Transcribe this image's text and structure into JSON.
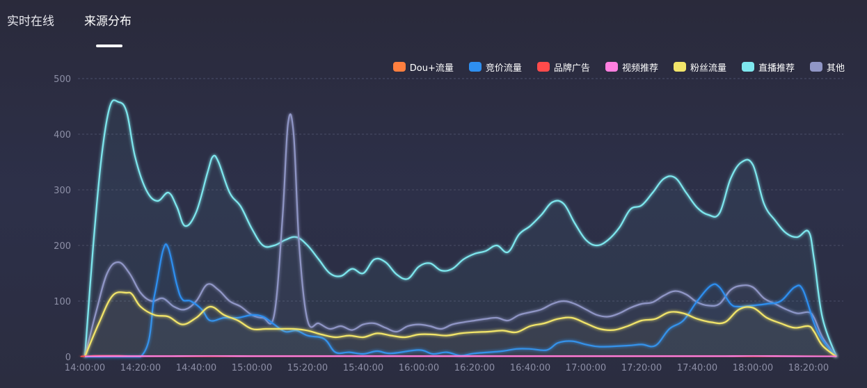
{
  "tabs": [
    {
      "label": "实时在线",
      "active": false
    },
    {
      "label": "来源分布",
      "active": true
    }
  ],
  "colors": {
    "background": "#2a2a3b",
    "grid": "#3b3e56",
    "tick": "#8d8fa6"
  },
  "chart_data": {
    "type": "line",
    "title": "",
    "xlabel": "",
    "ylabel": "",
    "ylim": [
      0,
      500
    ],
    "yticks": [
      0,
      100,
      200,
      300,
      400,
      500
    ],
    "x_range": [
      "14:00:00",
      "18:30:00"
    ],
    "xticks": [
      "14:00:00",
      "14:20:00",
      "14:40:00",
      "15:00:00",
      "15:20:00",
      "15:40:00",
      "16:00:00",
      "16:20:00",
      "16:40:00",
      "17:00:00",
      "17:20:00",
      "17:40:00",
      "18:00:00",
      "18:20:00"
    ],
    "grid": true,
    "legend_position": "top-right",
    "series": [
      {
        "name": "Dou+流量",
        "color": "#ff7f3f",
        "points": [
          [
            "14:00:00",
            0
          ],
          [
            "18:30:00",
            0
          ]
        ]
      },
      {
        "name": "竞价流量",
        "color": "#2e8ff0",
        "points": [
          [
            "14:00:00",
            0
          ],
          [
            "14:20:00",
            0
          ],
          [
            "14:25:00",
            110
          ],
          [
            "14:28:00",
            190
          ],
          [
            "14:30:00",
            195
          ],
          [
            "14:33:00",
            130
          ],
          [
            "14:35:00",
            103
          ],
          [
            "14:38:00",
            100
          ],
          [
            "14:42:00",
            85
          ],
          [
            "14:45:00",
            65
          ],
          [
            "14:50:00",
            70
          ],
          [
            "14:55:00",
            70
          ],
          [
            "15:00:00",
            75
          ],
          [
            "15:04:00",
            72
          ],
          [
            "15:08:00",
            58
          ],
          [
            "15:12:00",
            45
          ],
          [
            "15:16:00",
            47
          ],
          [
            "15:20:00",
            38
          ],
          [
            "15:26:00",
            32
          ],
          [
            "15:30:00",
            8
          ],
          [
            "15:35:00",
            8
          ],
          [
            "15:40:00",
            5
          ],
          [
            "15:45:00",
            10
          ],
          [
            "15:50:00",
            6
          ],
          [
            "16:00:00",
            12
          ],
          [
            "16:05:00",
            5
          ],
          [
            "16:10:00",
            8
          ],
          [
            "16:15:00",
            2
          ],
          [
            "16:20:00",
            6
          ],
          [
            "16:30:00",
            10
          ],
          [
            "16:35:00",
            14
          ],
          [
            "16:40:00",
            14
          ],
          [
            "16:46:00",
            12
          ],
          [
            "16:50:00",
            25
          ],
          [
            "16:55:00",
            28
          ],
          [
            "17:00:00",
            22
          ],
          [
            "17:05:00",
            18
          ],
          [
            "17:15:00",
            20
          ],
          [
            "17:20:00",
            22
          ],
          [
            "17:25:00",
            20
          ],
          [
            "17:30:00",
            50
          ],
          [
            "17:35:00",
            65
          ],
          [
            "17:40:00",
            100
          ],
          [
            "17:45:00",
            128
          ],
          [
            "17:48:00",
            125
          ],
          [
            "17:52:00",
            95
          ],
          [
            "17:55:00",
            90
          ],
          [
            "18:00:00",
            92
          ],
          [
            "18:05:00",
            95
          ],
          [
            "18:10:00",
            100
          ],
          [
            "18:15:00",
            125
          ],
          [
            "18:18:00",
            120
          ],
          [
            "18:22:00",
            60
          ],
          [
            "18:25:00",
            30
          ],
          [
            "18:30:00",
            0
          ]
        ]
      },
      {
        "name": "品牌广告",
        "color": "#ff4b4b",
        "points": [
          [
            "14:00:00",
            0
          ],
          [
            "14:05:00",
            2
          ],
          [
            "14:10:00",
            2
          ],
          [
            "14:15:00",
            1
          ],
          [
            "14:20:00",
            0
          ],
          [
            "18:30:00",
            0
          ]
        ]
      },
      {
        "name": "视频推荐",
        "color": "#ff7fe0",
        "points": [
          [
            "14:00:00",
            0
          ],
          [
            "14:10:00",
            1
          ],
          [
            "14:30:00",
            1
          ],
          [
            "14:45:00",
            2
          ],
          [
            "15:00:00",
            1
          ],
          [
            "15:30:00",
            1
          ],
          [
            "16:00:00",
            1
          ],
          [
            "16:30:00",
            1
          ],
          [
            "17:00:00",
            1
          ],
          [
            "17:30:00",
            1
          ],
          [
            "17:50:00",
            1
          ],
          [
            "18:00:00",
            2
          ],
          [
            "18:10:00",
            1
          ],
          [
            "18:30:00",
            0
          ]
        ]
      },
      {
        "name": "粉丝流量",
        "color": "#f2e56a",
        "points": [
          [
            "14:00:00",
            0
          ],
          [
            "14:05:00",
            60
          ],
          [
            "14:10:00",
            110
          ],
          [
            "14:15:00",
            115
          ],
          [
            "14:17:00",
            112
          ],
          [
            "14:20:00",
            90
          ],
          [
            "14:25:00",
            75
          ],
          [
            "14:30:00",
            72
          ],
          [
            "14:35:00",
            58
          ],
          [
            "14:40:00",
            70
          ],
          [
            "14:45:00",
            90
          ],
          [
            "14:50:00",
            75
          ],
          [
            "14:55:00",
            65
          ],
          [
            "15:00:00",
            50
          ],
          [
            "15:05:00",
            50
          ],
          [
            "15:10:00",
            50
          ],
          [
            "15:15:00",
            50
          ],
          [
            "15:20:00",
            47
          ],
          [
            "15:25:00",
            40
          ],
          [
            "15:30:00",
            35
          ],
          [
            "15:35:00",
            38
          ],
          [
            "15:40:00",
            35
          ],
          [
            "15:45:00",
            42
          ],
          [
            "15:50:00",
            38
          ],
          [
            "15:55:00",
            35
          ],
          [
            "16:00:00",
            40
          ],
          [
            "16:05:00",
            40
          ],
          [
            "16:10:00",
            38
          ],
          [
            "16:15:00",
            42
          ],
          [
            "16:20:00",
            44
          ],
          [
            "16:25:00",
            45
          ],
          [
            "16:30:00",
            47
          ],
          [
            "16:35:00",
            44
          ],
          [
            "16:40:00",
            55
          ],
          [
            "16:45:00",
            60
          ],
          [
            "16:50:00",
            68
          ],
          [
            "16:55:00",
            70
          ],
          [
            "17:00:00",
            60
          ],
          [
            "17:05:00",
            50
          ],
          [
            "17:10:00",
            48
          ],
          [
            "17:15:00",
            55
          ],
          [
            "17:20:00",
            65
          ],
          [
            "17:25:00",
            68
          ],
          [
            "17:30:00",
            80
          ],
          [
            "17:35:00",
            78
          ],
          [
            "17:40:00",
            68
          ],
          [
            "17:45:00",
            62
          ],
          [
            "17:50:00",
            62
          ],
          [
            "17:55:00",
            85
          ],
          [
            "18:00:00",
            88
          ],
          [
            "18:05:00",
            70
          ],
          [
            "18:10:00",
            60
          ],
          [
            "18:15:00",
            52
          ],
          [
            "18:20:00",
            55
          ],
          [
            "18:22:00",
            45
          ],
          [
            "18:25:00",
            20
          ],
          [
            "18:30:00",
            0
          ]
        ]
      },
      {
        "name": "直播推荐",
        "color": "#7ee7ee",
        "points": [
          [
            "14:00:00",
            0
          ],
          [
            "14:03:00",
            200
          ],
          [
            "14:06:00",
            360
          ],
          [
            "14:09:00",
            450
          ],
          [
            "14:12:00",
            458
          ],
          [
            "14:15:00",
            440
          ],
          [
            "14:18:00",
            360
          ],
          [
            "14:22:00",
            300
          ],
          [
            "14:26:00",
            280
          ],
          [
            "14:30:00",
            295
          ],
          [
            "14:33:00",
            270
          ],
          [
            "14:36:00",
            235
          ],
          [
            "14:40:00",
            260
          ],
          [
            "14:44:00",
            330
          ],
          [
            "14:46:00",
            360
          ],
          [
            "14:48:00",
            350
          ],
          [
            "14:52:00",
            295
          ],
          [
            "14:56:00",
            270
          ],
          [
            "15:00:00",
            230
          ],
          [
            "15:04:00",
            200
          ],
          [
            "15:08:00",
            200
          ],
          [
            "15:12:00",
            210
          ],
          [
            "15:16:00",
            215
          ],
          [
            "15:20:00",
            200
          ],
          [
            "15:24:00",
            175
          ],
          [
            "15:28:00",
            150
          ],
          [
            "15:32:00",
            145
          ],
          [
            "15:36:00",
            158
          ],
          [
            "15:40:00",
            150
          ],
          [
            "15:44:00",
            175
          ],
          [
            "15:48:00",
            170
          ],
          [
            "15:52:00",
            148
          ],
          [
            "15:56:00",
            140
          ],
          [
            "16:00:00",
            162
          ],
          [
            "16:04:00",
            168
          ],
          [
            "16:08:00",
            155
          ],
          [
            "16:12:00",
            158
          ],
          [
            "16:16:00",
            175
          ],
          [
            "16:20:00",
            185
          ],
          [
            "16:24:00",
            190
          ],
          [
            "16:28:00",
            200
          ],
          [
            "16:32:00",
            188
          ],
          [
            "16:36:00",
            220
          ],
          [
            "16:40:00",
            235
          ],
          [
            "16:44:00",
            255
          ],
          [
            "16:48:00",
            278
          ],
          [
            "16:52:00",
            275
          ],
          [
            "16:56:00",
            240
          ],
          [
            "17:00:00",
            210
          ],
          [
            "17:04:00",
            200
          ],
          [
            "17:08:00",
            210
          ],
          [
            "17:12:00",
            232
          ],
          [
            "17:16:00",
            265
          ],
          [
            "17:20:00",
            272
          ],
          [
            "17:24:00",
            295
          ],
          [
            "17:28:00",
            320
          ],
          [
            "17:32:00",
            322
          ],
          [
            "17:36:00",
            295
          ],
          [
            "17:40:00",
            268
          ],
          [
            "17:44:00",
            255
          ],
          [
            "17:48:00",
            258
          ],
          [
            "17:52:00",
            320
          ],
          [
            "17:56:00",
            350
          ],
          [
            "18:00:00",
            345
          ],
          [
            "18:04:00",
            275
          ],
          [
            "18:08:00",
            245
          ],
          [
            "18:12:00",
            222
          ],
          [
            "18:16:00",
            215
          ],
          [
            "18:20:00",
            225
          ],
          [
            "18:22:00",
            175
          ],
          [
            "18:25:00",
            70
          ],
          [
            "18:30:00",
            0
          ]
        ]
      },
      {
        "name": "其他",
        "color": "#9096c6",
        "points": [
          [
            "14:00:00",
            0
          ],
          [
            "14:04:00",
            80
          ],
          [
            "14:08:00",
            150
          ],
          [
            "14:12:00",
            170
          ],
          [
            "14:16:00",
            150
          ],
          [
            "14:20:00",
            115
          ],
          [
            "14:24:00",
            100
          ],
          [
            "14:28:00",
            105
          ],
          [
            "14:32:00",
            90
          ],
          [
            "14:36:00",
            85
          ],
          [
            "14:40:00",
            100
          ],
          [
            "14:44:00",
            130
          ],
          [
            "14:48:00",
            120
          ],
          [
            "14:52:00",
            100
          ],
          [
            "14:56:00",
            90
          ],
          [
            "15:00:00",
            75
          ],
          [
            "15:04:00",
            70
          ],
          [
            "15:08:00",
            75
          ],
          [
            "15:11:00",
            250
          ],
          [
            "15:13:00",
            420
          ],
          [
            "15:15:00",
            400
          ],
          [
            "15:17:00",
            200
          ],
          [
            "15:20:00",
            65
          ],
          [
            "15:24:00",
            60
          ],
          [
            "15:28:00",
            50
          ],
          [
            "15:32:00",
            55
          ],
          [
            "15:36:00",
            48
          ],
          [
            "15:40:00",
            58
          ],
          [
            "15:44:00",
            60
          ],
          [
            "15:48:00",
            52
          ],
          [
            "15:52:00",
            45
          ],
          [
            "15:56:00",
            55
          ],
          [
            "16:00:00",
            58
          ],
          [
            "16:04:00",
            55
          ],
          [
            "16:08:00",
            50
          ],
          [
            "16:12:00",
            58
          ],
          [
            "16:16:00",
            62
          ],
          [
            "16:20:00",
            65
          ],
          [
            "16:24:00",
            68
          ],
          [
            "16:28:00",
            70
          ],
          [
            "16:32:00",
            65
          ],
          [
            "16:36:00",
            75
          ],
          [
            "16:40:00",
            80
          ],
          [
            "16:44:00",
            85
          ],
          [
            "16:48:00",
            95
          ],
          [
            "16:52:00",
            100
          ],
          [
            "16:56:00",
            95
          ],
          [
            "17:00:00",
            85
          ],
          [
            "17:04:00",
            75
          ],
          [
            "17:08:00",
            72
          ],
          [
            "17:12:00",
            78
          ],
          [
            "17:16:00",
            88
          ],
          [
            "17:20:00",
            95
          ],
          [
            "17:24:00",
            98
          ],
          [
            "17:28:00",
            110
          ],
          [
            "17:32:00",
            118
          ],
          [
            "17:36:00",
            112
          ],
          [
            "17:40:00",
            98
          ],
          [
            "17:44:00",
            92
          ],
          [
            "17:48:00",
            95
          ],
          [
            "17:52:00",
            120
          ],
          [
            "17:56:00",
            128
          ],
          [
            "18:00:00",
            125
          ],
          [
            "18:04:00",
            105
          ],
          [
            "18:08:00",
            95
          ],
          [
            "18:12:00",
            85
          ],
          [
            "18:16:00",
            78
          ],
          [
            "18:20:00",
            80
          ],
          [
            "18:22:00",
            70
          ],
          [
            "18:25:00",
            35
          ],
          [
            "18:30:00",
            0
          ]
        ]
      }
    ]
  }
}
